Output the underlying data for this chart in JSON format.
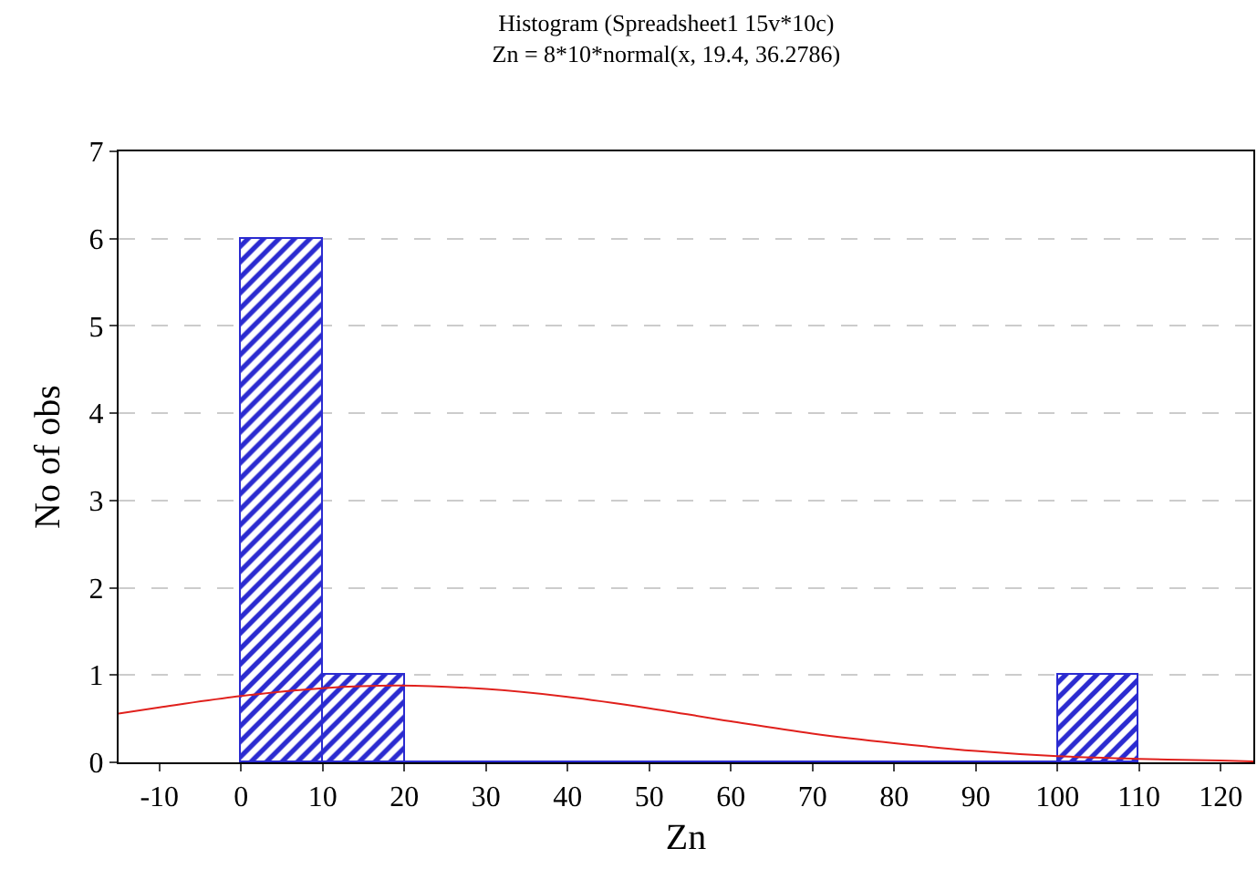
{
  "chart_data": {
    "type": "histogram",
    "title": "Histogram (Spreadsheet1 15v*10c)",
    "subtitle": "Zn = 8*10*normal(x, 19.4, 36.2786)",
    "xlabel": "Zn",
    "ylabel": "No of obs",
    "bins": [
      0,
      10,
      20,
      30,
      40,
      50,
      60,
      70,
      80,
      90,
      100,
      110
    ],
    "values": [
      6,
      1,
      0,
      0,
      0,
      0,
      0,
      0,
      0,
      0,
      1
    ],
    "color": "#2b2bd0",
    "series": [
      {
        "type": "line",
        "color": "#e0201c",
        "x": [
          -15,
          -10,
          0,
          10,
          19.4,
          30,
          40,
          50,
          60,
          70,
          80,
          90,
          100,
          110,
          120,
          124
        ],
        "values": [
          0.56,
          0.63,
          0.76,
          0.85,
          0.88,
          0.84,
          0.75,
          0.62,
          0.47,
          0.33,
          0.22,
          0.13,
          0.07,
          0.04,
          0.02,
          0.01
        ]
      }
    ],
    "xlim": [
      -15,
      124
    ],
    "xticks": [
      -10,
      0,
      10,
      20,
      30,
      40,
      50,
      60,
      70,
      80,
      90,
      100,
      110,
      120
    ],
    "ylim": [
      0,
      7
    ],
    "yticks": [
      0,
      1,
      2,
      3,
      4,
      5,
      6,
      7
    ],
    "grid": "y"
  }
}
